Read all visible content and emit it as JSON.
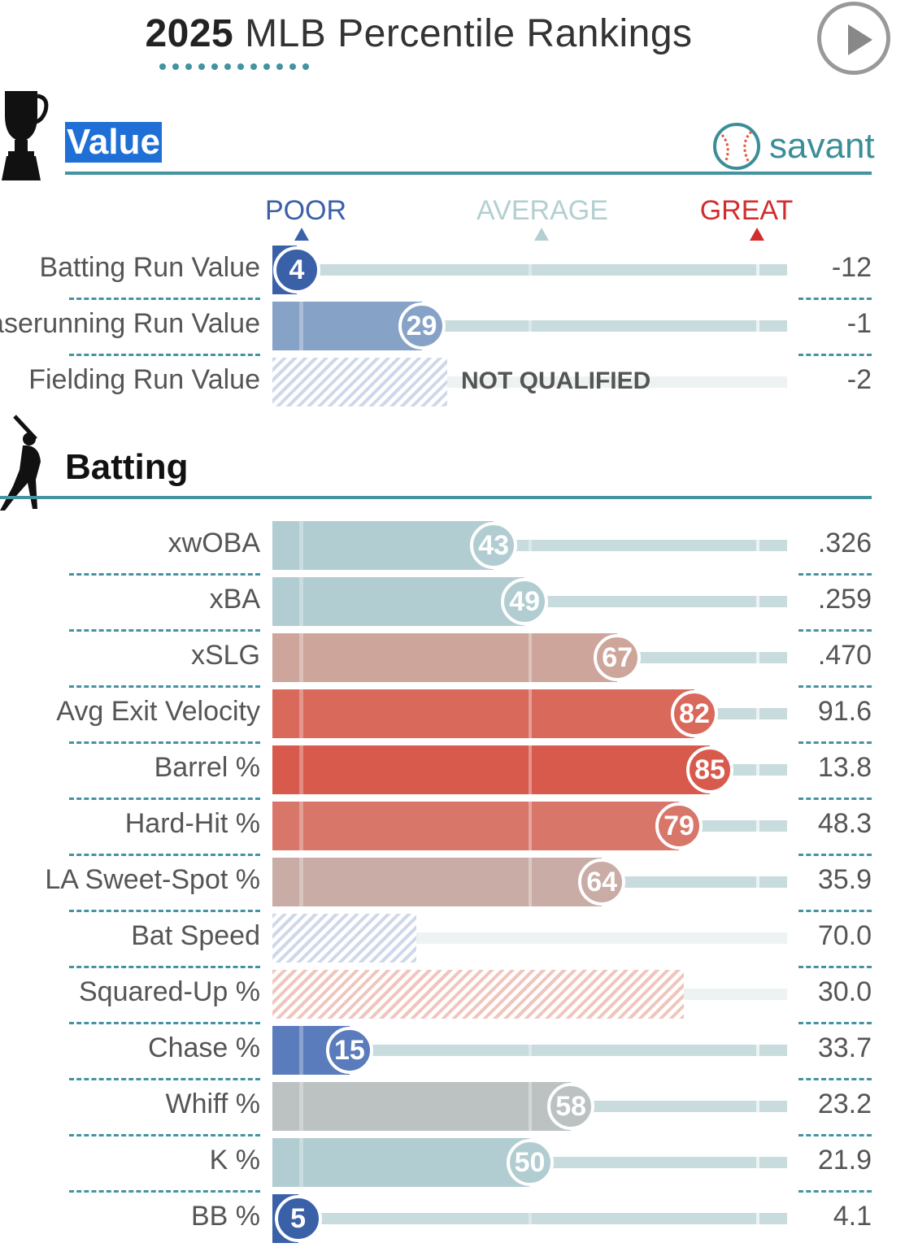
{
  "header": {
    "year": "2025",
    "title_rest": " MLB Percentile Rankings"
  },
  "icons": {
    "play": "play-icon",
    "trophy": "trophy-icon",
    "batter": "batter-icon",
    "savant_logo": "baseball-icon"
  },
  "brand": {
    "savant_text": "savant",
    "accent": "#4393a1"
  },
  "scale": {
    "poor": {
      "label": "POOR",
      "color": "#3a60a8"
    },
    "average": {
      "label": "AVERAGE",
      "color": "#b3cfd2"
    },
    "great": {
      "label": "GREAT",
      "color": "#d22d2d"
    }
  },
  "sections": {
    "value": {
      "title": "Value",
      "rows": [
        {
          "label": "Batting Run Value",
          "percentile": 4,
          "value": "-12",
          "qualified": true,
          "color": "#3a60a8"
        },
        {
          "label": "Baserunning Run Value",
          "percentile": 29,
          "value": "-1",
          "qualified": true,
          "color": "#87a2c7"
        },
        {
          "label": "Fielding Run Value",
          "percentile": 34,
          "value": "-2",
          "qualified": false,
          "hatch": "blue",
          "nq_text": "NOT QUALIFIED"
        }
      ]
    },
    "batting": {
      "title": "Batting",
      "rows": [
        {
          "label": "xwOBA",
          "percentile": 43,
          "value": ".326",
          "qualified": true,
          "color": "#b2cdd1"
        },
        {
          "label": "xBA",
          "percentile": 49,
          "value": ".259",
          "qualified": true,
          "color": "#b2cdd1"
        },
        {
          "label": "xSLG",
          "percentile": 67,
          "value": ".470",
          "qualified": true,
          "color": "#cda59b"
        },
        {
          "label": "Avg Exit Velocity",
          "percentile": 82,
          "value": "91.6",
          "qualified": true,
          "color": "#d9695b"
        },
        {
          "label": "Barrel %",
          "percentile": 85,
          "value": "13.8",
          "qualified": true,
          "color": "#d85a4d"
        },
        {
          "label": "Hard-Hit %",
          "percentile": 79,
          "value": "48.3",
          "qualified": true,
          "color": "#d8766a"
        },
        {
          "label": "LA Sweet-Spot %",
          "percentile": 64,
          "value": "35.9",
          "qualified": true,
          "color": "#c9aca5"
        },
        {
          "label": "Bat Speed",
          "percentile": 28,
          "value": "70.0",
          "qualified": false,
          "hatch": "blue"
        },
        {
          "label": "Squared-Up %",
          "percentile": 80,
          "value": "30.0",
          "qualified": false,
          "hatch": "red"
        },
        {
          "label": "Chase %",
          "percentile": 15,
          "value": "33.7",
          "qualified": true,
          "color": "#5a7bbc"
        },
        {
          "label": "Whiff %",
          "percentile": 58,
          "value": "23.2",
          "qualified": true,
          "color": "#bcc2c2"
        },
        {
          "label": "K %",
          "percentile": 50,
          "value": "21.9",
          "qualified": true,
          "color": "#b2cdd1"
        },
        {
          "label": "BB %",
          "percentile": 5,
          "value": "4.1",
          "qualified": true,
          "color": "#3a60a8"
        }
      ]
    }
  }
}
